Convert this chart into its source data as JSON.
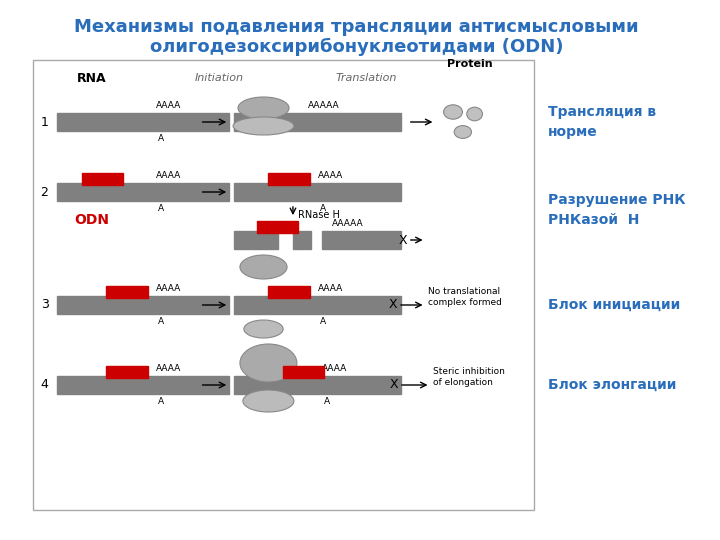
{
  "title_line1": "Механизмы подавления трансляции антисмысловыми",
  "title_line2": "олигодезоксирибонуклеотидами (ODN)",
  "title_color": "#2A6EBB",
  "title_fontsize": 13,
  "bg_color": "#FFFFFF",
  "rna_color": "#808080",
  "odn_color": "#CC0000",
  "text_color_blue": "#2A6EBB",
  "text_color_red": "#CC0000",
  "labels_right": [
    "Трансляция в\nнорме",
    "Разрушение РНК\nРНКазой  Н",
    "Блок инициации",
    "Блок элонгации"
  ],
  "header_rna": "RNA",
  "header_init": "Initiation",
  "header_transl": "Translation",
  "header_protein": "Protein",
  "odn_label": "ODN",
  "rnase_label": "RNase H",
  "no_transl_label": "No translational\ncomplex formed",
  "steric_label": "Steric inhibition\nof elongation"
}
